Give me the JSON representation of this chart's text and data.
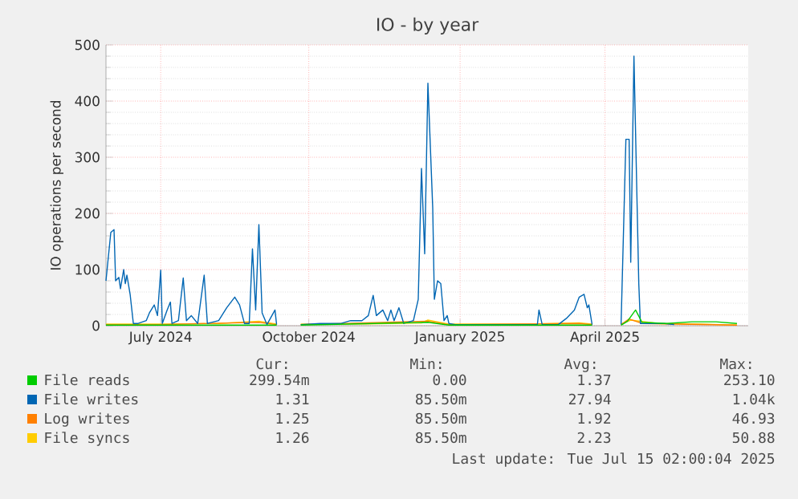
{
  "chart_data": {
    "type": "line",
    "title": "IO - by year",
    "ylabel": "IO operations per second",
    "xlim": [
      "2024-06-11",
      "2025-07-15"
    ],
    "ylim": [
      0,
      500
    ],
    "xticks": [
      {
        "value": "2024-07-15",
        "label": "July 2024"
      },
      {
        "value": "2024-10-15",
        "label": "October 2024"
      },
      {
        "value": "2025-01-17",
        "label": "January 2025"
      },
      {
        "value": "2025-04-17",
        "label": "April 2025"
      }
    ],
    "yticks": [
      0,
      100,
      200,
      300,
      400,
      500
    ],
    "grid": true,
    "legend": "bottom",
    "marker": "none",
    "line_style": "solid",
    "series": [
      {
        "name": "File reads",
        "color": "#00cc00",
        "x": [
          "2024-06-11",
          "2024-09-25",
          "2024-10-01",
          "2024-10-10",
          "2024-12-28",
          "2025-01-10",
          "2025-04-09",
          "2025-04-20",
          "2025-04-27",
          "2025-05-01",
          "2025-05-06",
          "2025-05-10",
          "2025-05-25",
          "2025-06-10",
          "2025-06-25",
          "2025-07-08"
        ],
        "values": [
          1,
          1,
          null,
          1,
          6,
          1,
          1,
          null,
          1,
          8,
          28,
          6,
          4,
          7,
          7,
          4
        ]
      },
      {
        "name": "File writes",
        "color": "#0066b3",
        "x": [
          "2024-06-11",
          "2024-06-14",
          "2024-06-16",
          "2024-06-17",
          "2024-06-19",
          "2024-06-20",
          "2024-06-22",
          "2024-06-23",
          "2024-06-24",
          "2024-06-26",
          "2024-06-28",
          "2024-07-01",
          "2024-07-06",
          "2024-07-08",
          "2024-07-11",
          "2024-07-13",
          "2024-07-15",
          "2024-07-16",
          "2024-07-19",
          "2024-07-21",
          "2024-07-22",
          "2024-07-26",
          "2024-07-29",
          "2024-07-31",
          "2024-08-03",
          "2024-08-07",
          "2024-08-09",
          "2024-08-11",
          "2024-08-13",
          "2024-08-20",
          "2024-08-25",
          "2024-08-30",
          "2024-09-02",
          "2024-09-05",
          "2024-09-08",
          "2024-09-10",
          "2024-09-12",
          "2024-09-14",
          "2024-09-16",
          "2024-09-19",
          "2024-09-24",
          "2024-09-25",
          "2024-10-01",
          "2024-10-10",
          "2024-10-22",
          "2024-11-04",
          "2024-11-10",
          "2024-11-17",
          "2024-11-21",
          "2024-11-24",
          "2024-11-26",
          "2024-11-30",
          "2024-12-03",
          "2024-12-05",
          "2024-12-07",
          "2024-12-10",
          "2024-12-13",
          "2024-12-19",
          "2024-12-22",
          "2024-12-24",
          "2024-12-26",
          "2024-12-28",
          "2024-12-31",
          "2025-01-01",
          "2025-01-03",
          "2025-01-05",
          "2025-01-07",
          "2025-01-09",
          "2025-01-10",
          "2025-01-14",
          "2025-03-06",
          "2025-03-07",
          "2025-03-09",
          "2025-03-19",
          "2025-03-24",
          "2025-03-29",
          "2025-04-01",
          "2025-04-04",
          "2025-04-06",
          "2025-04-07",
          "2025-04-09",
          "2025-04-20",
          "2025-04-27",
          "2025-04-30",
          "2025-05-02",
          "2025-05-03",
          "2025-05-05",
          "2025-05-08",
          "2025-05-09",
          "2025-05-24",
          "2025-05-30"
        ],
        "values": [
          80,
          166,
          171,
          80,
          86,
          66,
          100,
          75,
          90,
          56,
          4,
          4,
          9,
          23,
          37,
          18,
          99,
          4,
          28,
          42,
          4,
          9,
          85,
          9,
          18,
          4,
          47,
          90,
          4,
          9,
          32,
          51,
          37,
          4,
          4,
          137,
          28,
          180,
          23,
          2,
          28,
          2,
          null,
          2,
          4,
          4,
          9,
          9,
          18,
          54,
          18,
          28,
          9,
          28,
          9,
          32,
          4,
          9,
          47,
          280,
          128,
          432,
          209,
          47,
          80,
          75,
          9,
          18,
          4,
          2,
          2,
          28,
          2,
          2,
          13,
          28,
          51,
          56,
          32,
          37,
          2,
          null,
          2,
          332,
          332,
          113,
          480,
          75,
          4,
          4,
          2
        ]
      },
      {
        "name": "Log writes",
        "color": "#ff8000",
        "x": [
          "2024-06-11",
          "2024-07-15",
          "2024-09-14",
          "2024-09-25",
          "2024-10-01",
          "2024-10-10",
          "2024-12-28",
          "2025-01-10",
          "2025-04-01",
          "2025-04-09",
          "2025-04-20",
          "2025-04-27",
          "2025-05-02",
          "2025-05-10",
          "2025-07-08"
        ],
        "values": [
          2,
          2,
          6,
          2,
          null,
          2,
          8,
          2,
          4,
          2,
          null,
          2,
          12,
          4,
          1
        ]
      },
      {
        "name": "File syncs",
        "color": "#ffcc00",
        "x": [
          "2024-06-11",
          "2024-07-15",
          "2024-08-20",
          "2024-09-14",
          "2024-09-25",
          "2024-10-01",
          "2024-10-10",
          "2024-11-20",
          "2024-12-24",
          "2024-12-28",
          "2025-01-10",
          "2025-03-01",
          "2025-04-01",
          "2025-04-09",
          "2025-04-20",
          "2025-04-27",
          "2025-05-03",
          "2025-05-20",
          "2025-06-15",
          "2025-07-08"
        ],
        "values": [
          3,
          3,
          4,
          8,
          3,
          null,
          3,
          3,
          5,
          10,
          3,
          3,
          5,
          3,
          null,
          3,
          10,
          4,
          3,
          1
        ]
      }
    ],
    "annotations": [
      "Cur:",
      "Min:",
      "Avg:",
      "Max:",
      "299.54m",
      "0.00",
      "1.37",
      "253.10",
      "1.31",
      "85.50m",
      "27.94",
      "1.04k",
      "1.25",
      "85.50m",
      "1.92",
      "46.93",
      "1.26",
      "85.50m",
      "2.23",
      "50.88",
      "Last update: Tue Jul 15 02:00:04 2025"
    ]
  }
}
